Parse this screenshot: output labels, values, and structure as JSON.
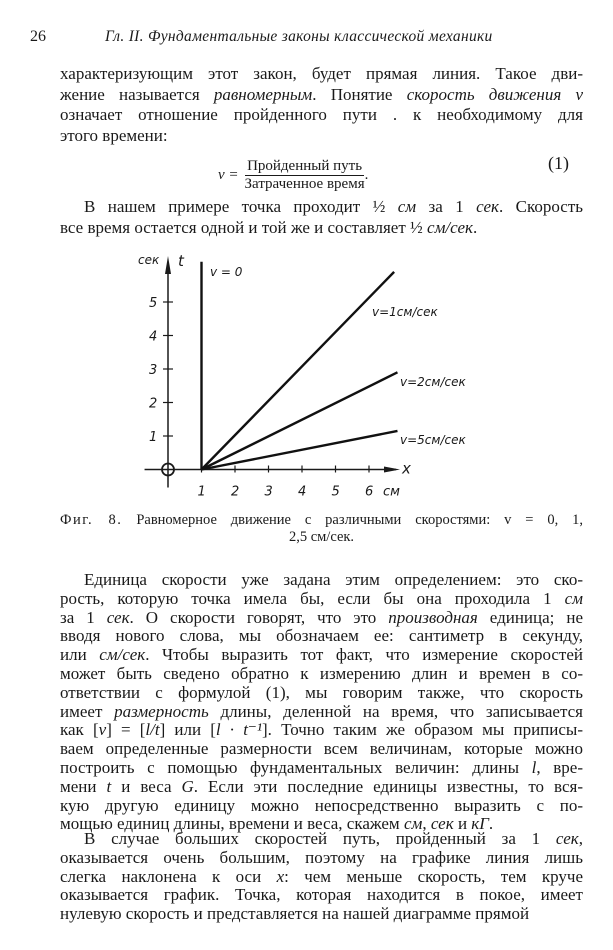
{
  "header": {
    "page_number": "26",
    "running_title": "Гл. II. Фундаментальные законы классической механики"
  },
  "paragraph_1": [
    [
      {
        "t": "характеризующим этот закон, будет прямая линия. Такое дви-"
      }
    ],
    [
      {
        "t": "жение называется "
      },
      {
        "t": "равномерным",
        "i": true
      },
      {
        "t": ". Понятие "
      },
      {
        "t": "скорость движения v",
        "i": true
      }
    ],
    [
      {
        "t": "означает отношение пройденного пути . к необходимому для"
      }
    ],
    [
      {
        "t": "этого времени:"
      }
    ]
  ],
  "formula": {
    "lhs": "v =",
    "numerator": "Пройденный путь",
    "denominator": "Затраченное время",
    "trailing": ".",
    "number": "(1)"
  },
  "paragraph_2": [
    [
      {
        "t": "В нашем примере точка проходит "
      },
      {
        "t": "½ "
      },
      {
        "t": "см",
        "i": true
      },
      {
        "t": " за 1 "
      },
      {
        "t": "сек",
        "i": true
      },
      {
        "t": ". Скорость"
      }
    ],
    [
      {
        "t": "все время остается одной и той же и составляет "
      },
      {
        "t": "½ "
      },
      {
        "t": "см/сек",
        "i": true
      },
      {
        "t": "."
      }
    ]
  ],
  "chart_data": {
    "type": "line",
    "x_axis_label": "x",
    "x_unit_label": "см",
    "y_axis_label": "t",
    "y_unit_label": "сек",
    "x_ticks": [
      "1",
      "2",
      "3",
      "4",
      "5",
      "6"
    ],
    "y_ticks": [
      "1",
      "2",
      "3",
      "4",
      "5"
    ],
    "xlim": [
      0,
      6.8
    ],
    "ylim": [
      0,
      6.3
    ],
    "series": [
      {
        "name": "v = 0",
        "points": [
          [
            1,
            0
          ],
          [
            1,
            6.2
          ]
        ]
      },
      {
        "name": "v=1см/сек",
        "points": [
          [
            1,
            0
          ],
          [
            6.75,
            5.9
          ]
        ]
      },
      {
        "name": "v=2см/сек",
        "points": [
          [
            1,
            0
          ],
          [
            6.85,
            2.9
          ]
        ]
      },
      {
        "name": "v=5см/сек",
        "points": [
          [
            1,
            0
          ],
          [
            6.85,
            1.15
          ]
        ]
      }
    ]
  },
  "caption": {
    "label": "Фиг. 8.",
    "line1": "Равномерное движение с различными скоростями: v = 0, 1,",
    "line2": "2,5 см/сек."
  },
  "paragraph_3": [
    [
      {
        "t": "Единица скорости уже задана этим определением: это ско-"
      }
    ],
    [
      {
        "t": "рость, которую точка имела бы, если бы она проходила 1 "
      },
      {
        "t": "см",
        "i": true
      }
    ],
    [
      {
        "t": "за 1 "
      },
      {
        "t": "сек",
        "i": true
      },
      {
        "t": ". О скорости говорят, что это "
      },
      {
        "t": "производная",
        "i": true
      },
      {
        "t": " единица; не"
      }
    ],
    [
      {
        "t": "вводя нового слова, мы обозначаем ее: сантиметр в секунду,"
      }
    ],
    [
      {
        "t": "или "
      },
      {
        "t": "см/сек",
        "i": true
      },
      {
        "t": ". Чтобы выразить тот факт, что измерение скоростей"
      }
    ],
    [
      {
        "t": "может быть сведено обратно к измерению длин и времен в со-"
      }
    ],
    [
      {
        "t": "ответствии с формулой (1), мы говорим также, что скорость"
      }
    ],
    [
      {
        "t": "имеет "
      },
      {
        "t": "размерность",
        "i": true
      },
      {
        "t": " длины, деленной на время, что записывается"
      }
    ],
    [
      {
        "t": "как ["
      },
      {
        "t": "v",
        "i": true
      },
      {
        "t": "] = ["
      },
      {
        "t": "l/t",
        "i": true
      },
      {
        "t": "] или ["
      },
      {
        "t": "l · t⁻¹",
        "i": true
      },
      {
        "t": "]. Точно таким же образом мы приписы-"
      }
    ],
    [
      {
        "t": "ваем определенные размерности всем величинам, которые можно"
      }
    ],
    [
      {
        "t": "построить с помощью фундаментальных величин: длины "
      },
      {
        "t": "l",
        "i": true
      },
      {
        "t": ", вре-"
      }
    ],
    [
      {
        "t": "мени "
      },
      {
        "t": "t",
        "i": true
      },
      {
        "t": " и веса "
      },
      {
        "t": "G",
        "i": true
      },
      {
        "t": ". Если эти последние единицы известны, то вся-"
      }
    ],
    [
      {
        "t": "кую другую единицу можно непосредственно выразить с по-"
      }
    ],
    [
      {
        "t": "мощью единиц длины, времени и веса, скажем "
      },
      {
        "t": "см",
        "i": true
      },
      {
        "t": ", "
      },
      {
        "t": "сек",
        "i": true
      },
      {
        "t": " и "
      },
      {
        "t": "кГ",
        "i": true
      },
      {
        "t": "."
      }
    ]
  ],
  "paragraph_4": [
    [
      {
        "t": "В случае больших скоростей путь, пройденный за 1 "
      },
      {
        "t": "сек",
        "i": true
      },
      {
        "t": ","
      }
    ],
    [
      {
        "t": "оказывается очень большим, поэтому на графике линия лишь"
      }
    ],
    [
      {
        "t": "слегка наклонена к оси "
      },
      {
        "t": "x",
        "i": true
      },
      {
        "t": ": чем меньше скорость, тем круче"
      }
    ],
    [
      {
        "t": "оказывается график. Точка, которая находится в покое, имеет"
      }
    ],
    [
      {
        "t": "нулевую скорость и представляется на нашей диаграмме прямой"
      }
    ]
  ]
}
